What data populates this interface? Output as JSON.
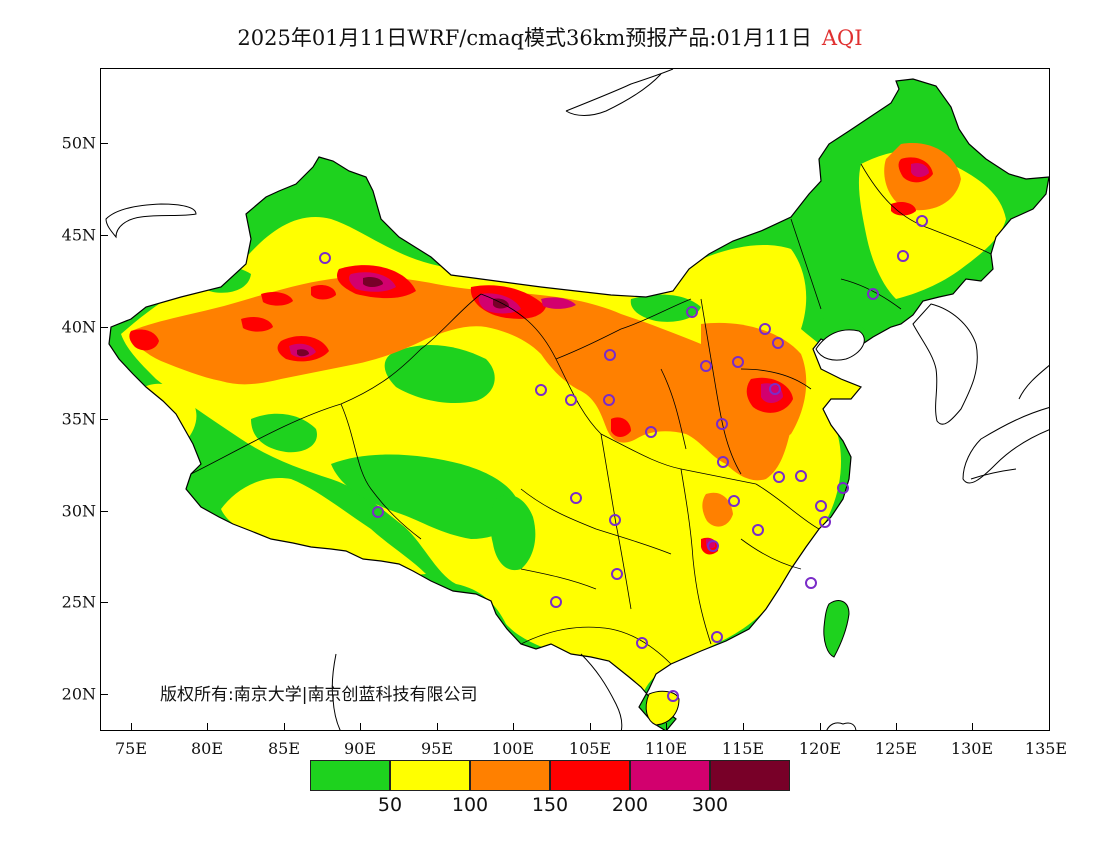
{
  "title": {
    "main": "2025年01月11日WRF/cmaq模式36km预报产品:01月11日",
    "variable": "AQI"
  },
  "axes": {
    "y_ticks": [
      "50N",
      "45N",
      "40N",
      "35N",
      "30N",
      "25N",
      "20N"
    ],
    "x_ticks": [
      "75E",
      "80E",
      "85E",
      "90E",
      "95E",
      "100E",
      "105E",
      "110E",
      "115E",
      "120E",
      "125E",
      "130E",
      "135E"
    ]
  },
  "copyright": "版权所有:南京大学|南京创蓝科技有限公司",
  "legend": {
    "colors": [
      "#1ed21e",
      "#ffff00",
      "#ff8000",
      "#ff0000",
      "#d2006e",
      "#780028"
    ],
    "labels": [
      "50",
      "100",
      "150",
      "200",
      "300"
    ]
  },
  "colors": {
    "green": "#1ed21e",
    "yellow": "#ffff00",
    "orange": "#ff8000",
    "red": "#ff0000",
    "magenta": "#d2006e",
    "maroon": "#780028",
    "station_ring": "#7a2cc8"
  }
}
